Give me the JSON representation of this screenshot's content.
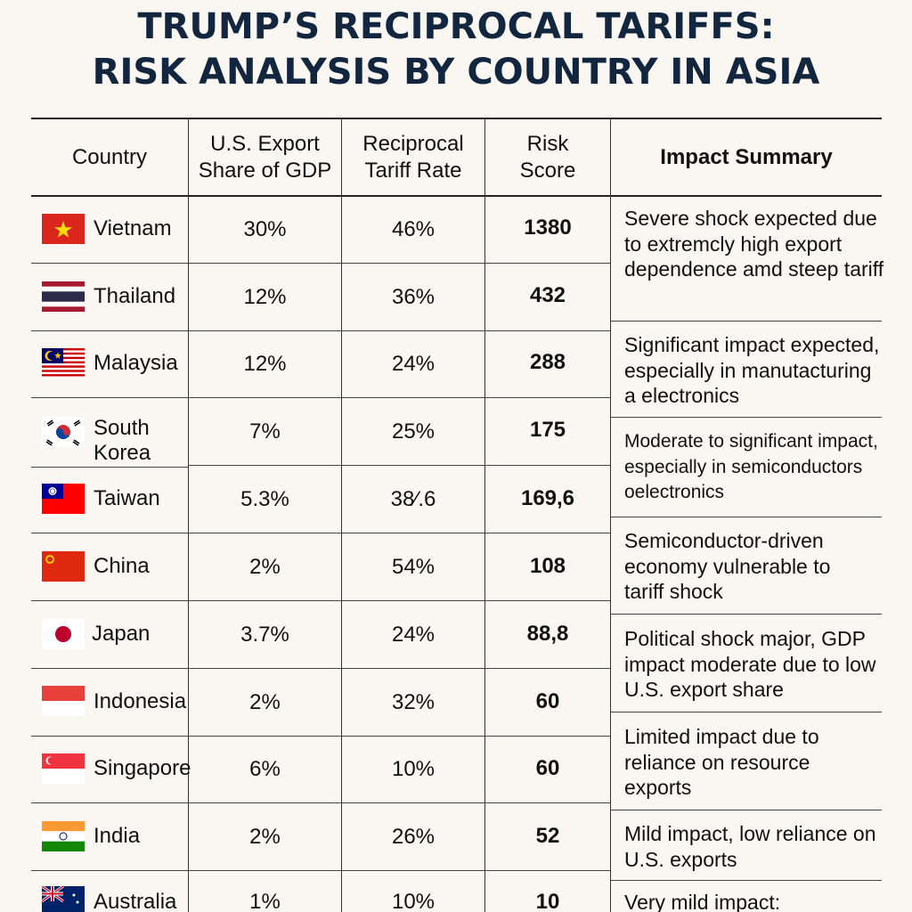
{
  "title": {
    "line1": "TRUMP’S RECIPROCAL TARIFFS:",
    "line2": "RISK ANALYSIS BY COUNTRY IN ASIA"
  },
  "headers": {
    "country": "Country",
    "export_share_line1": "U.S. Export",
    "export_share_line2": "Share of GDP",
    "tariff_line1": "Reciprocal",
    "tariff_line2": "Tariff Rate",
    "risk_line1": "Risk",
    "risk_line2": "Score",
    "impact": "Impact Summary"
  },
  "rows": [
    {
      "country": "Vietnam",
      "export_share": "30%",
      "tariff": "46%",
      "risk": "1380",
      "flag": "vietnam-flag"
    },
    {
      "country": "Thailand",
      "export_share": "12%",
      "tariff": "36%",
      "risk": "432",
      "flag": "thailand-flag"
    },
    {
      "country": "Malaysia",
      "export_share": "12%",
      "tariff": "24%",
      "risk": "288",
      "flag": "malaysia-flag"
    },
    {
      "country": "South\nKorea",
      "export_share": "7%",
      "tariff": "25%",
      "risk": "175",
      "flag": "south-korea-flag"
    },
    {
      "country": "Taiwan",
      "export_share": "5.3%",
      "tariff": "38⁄.6",
      "risk": "169,6",
      "flag": "taiwan-flag"
    },
    {
      "country": "China",
      "export_share": "2%",
      "tariff": "54%",
      "risk": "108",
      "flag": "china-flag"
    },
    {
      "country": "Japan",
      "export_share": "3.7%",
      "tariff": "24%",
      "risk": "88,8",
      "flag": "japan-flag"
    },
    {
      "country": "Indonesia",
      "export_share": "2%",
      "tariff": "32%",
      "risk": "60",
      "flag": "indonesia-flag"
    },
    {
      "country": "Singapore",
      "export_share": "6%",
      "tariff": "10%",
      "risk": "60",
      "flag": "singapore-flag"
    },
    {
      "country": "India",
      "export_share": "2%",
      "tariff": "26%",
      "risk": "52",
      "flag": "india-flag"
    },
    {
      "country": "Australia",
      "export_share": "1%",
      "tariff": "10%",
      "risk": "10",
      "flag": "australia-flag"
    }
  ],
  "summaries": [
    "Severe shock expected due to extremcly high export dependence amd steep tariff",
    "Significant impact expected, especially in manutacturing a electronics",
    "Moderate to significant impact, especially in semiconductors oelectronics",
    "Semiconductor-driven economy vulnerable to tariff shock",
    "Political shock major, GDP impact moderate due to low U.S. export share",
    "Limited impact due to reliance on resource exports",
    "Mild impact, low reliance on U.S. exports",
    "Very mild impact:"
  ],
  "colors": {
    "title": "#13263f",
    "grid": "#333333",
    "background": "#faf7f2"
  }
}
